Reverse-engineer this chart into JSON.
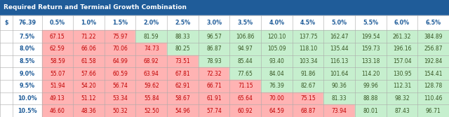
{
  "title": "Required Return and Terminal Growth Combination",
  "title_bg": "#1F5C99",
  "title_color": "#FFFFFF",
  "header_label": "$",
  "current_price": "76.39",
  "col_headers": [
    "0.5%",
    "1.0%",
    "1.5%",
    "2.0%",
    "2.5%",
    "3.0%",
    "3.5%",
    "4.0%",
    "4.5%",
    "5.0%",
    "5.5%",
    "6.0%",
    "6.5%"
  ],
  "row_headers": [
    "7.5%",
    "8.0%",
    "8.5%",
    "9.0%",
    "9.5%",
    "10.0%",
    "10.5%"
  ],
  "values": [
    [
      67.15,
      71.22,
      75.97,
      81.59,
      88.33,
      96.57,
      106.86,
      120.1,
      137.75,
      162.47,
      199.54,
      261.32,
      384.89
    ],
    [
      62.59,
      66.06,
      70.06,
      74.73,
      80.25,
      86.87,
      94.97,
      105.09,
      118.1,
      135.44,
      159.73,
      196.16,
      256.87
    ],
    [
      58.59,
      61.58,
      64.99,
      68.92,
      73.51,
      78.93,
      85.44,
      93.4,
      103.34,
      116.13,
      133.18,
      157.04,
      192.84
    ],
    [
      55.07,
      57.66,
      60.59,
      63.94,
      67.81,
      72.32,
      77.65,
      84.04,
      91.86,
      101.64,
      114.2,
      130.95,
      154.41
    ],
    [
      51.94,
      54.2,
      56.74,
      59.62,
      62.91,
      66.71,
      71.15,
      76.39,
      82.67,
      90.36,
      99.96,
      112.31,
      128.78
    ],
    [
      49.13,
      51.12,
      53.34,
      55.84,
      58.67,
      61.91,
      65.64,
      70.0,
      75.15,
      81.33,
      88.88,
      98.32,
      110.46
    ],
    [
      46.6,
      48.36,
      50.32,
      52.5,
      54.96,
      57.74,
      60.92,
      64.59,
      68.87,
      73.94,
      80.01,
      87.43,
      96.71
    ]
  ],
  "threshold": 76.39,
  "color_below": "#FFB3B3",
  "color_above": "#C6EFCE",
  "text_below": "#C00000",
  "text_above": "#375623",
  "header_text": "#1F5C99",
  "row_header_text": "#1F5C99",
  "border_color": "#AAAAAA",
  "font_size": 5.5,
  "header_font_size": 5.8,
  "title_font_size": 6.5
}
